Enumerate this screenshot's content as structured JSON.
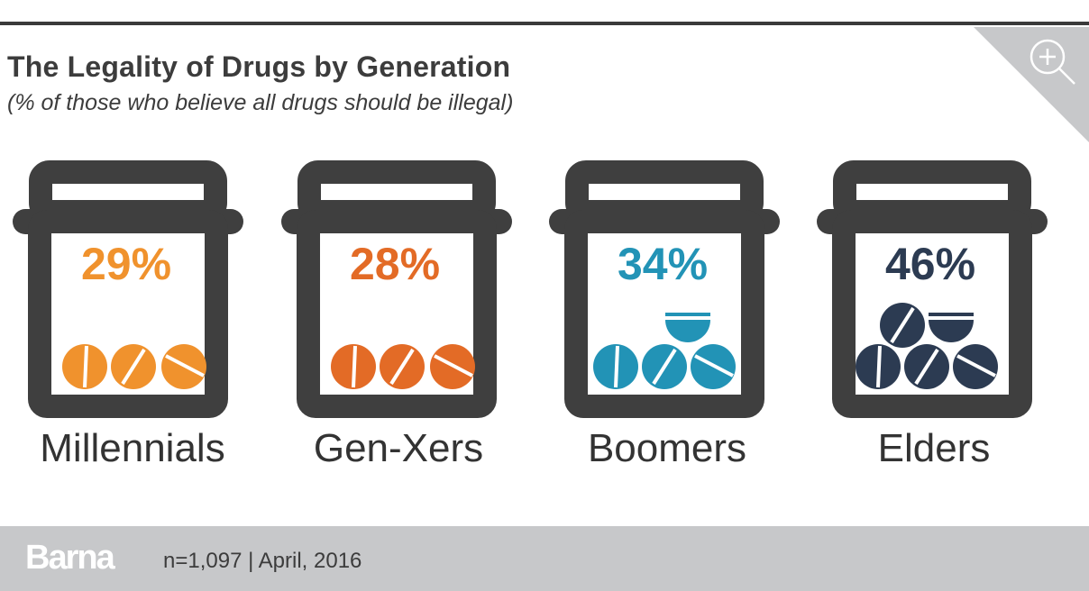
{
  "header": {
    "title": "The Legality of Drugs by Generation",
    "subtitle": "(% of those who believe all drugs should be illegal)",
    "zoom_icon": "zoom-in-icon"
  },
  "chart_data": {
    "type": "bar",
    "title": "The Legality of Drugs by Generation",
    "subtitle": "(% of those who believe all drugs should be illegal)",
    "categories": [
      "Millennials",
      "Gen-Xers",
      "Boomers",
      "Elders"
    ],
    "values": [
      29,
      28,
      34,
      46
    ],
    "value_labels": [
      "29%",
      "28%",
      "34%",
      "46%"
    ],
    "unit": "%",
    "colors": [
      "#f0922d",
      "#e36b26",
      "#2293b6",
      "#2c3b52"
    ],
    "pills_per_category": [
      3,
      3,
      4,
      5
    ]
  },
  "footer": {
    "brand": "Barna",
    "source": "n=1,097  |  April, 2016"
  }
}
